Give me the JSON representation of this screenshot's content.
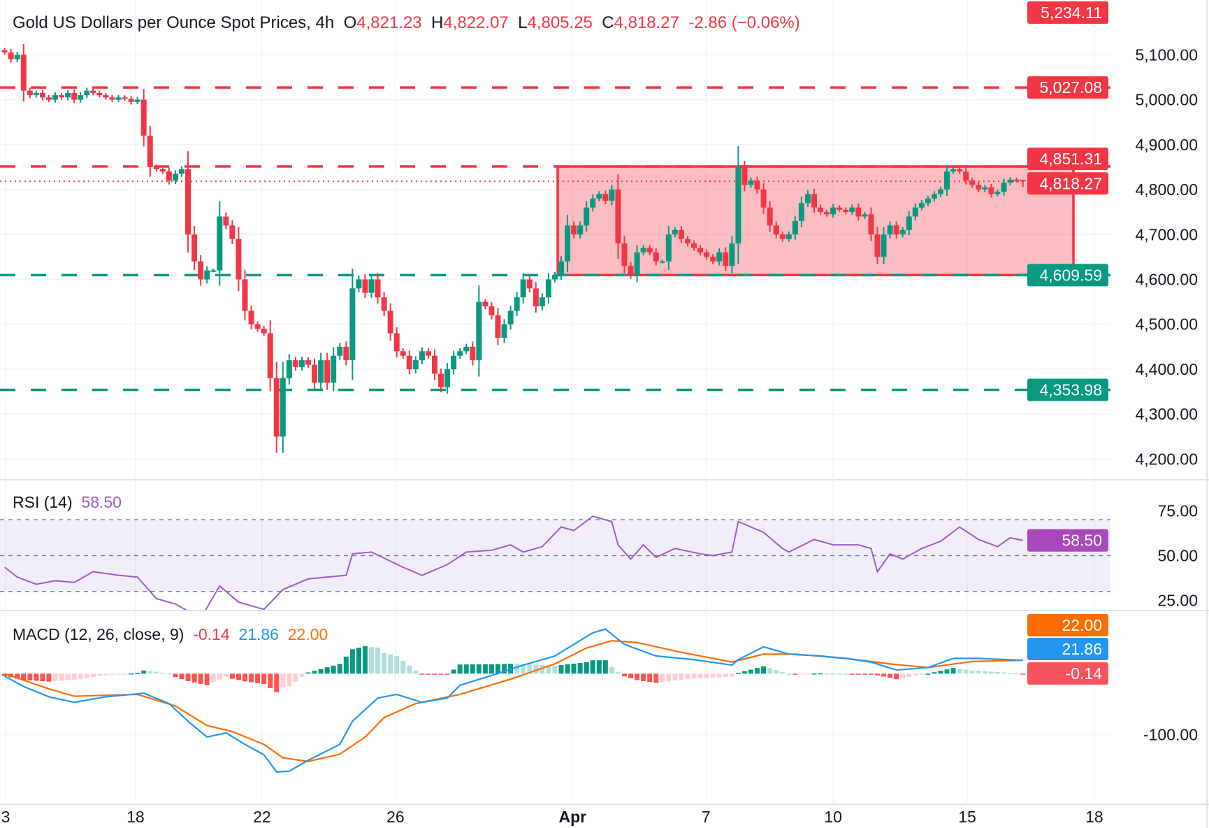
{
  "header": {
    "symbol": "Gold US Dollars per Ounce Spot Prices, 4h",
    "open_label": "O",
    "open": "4,821.23",
    "high_label": "H",
    "high": "4,822.07",
    "low_label": "L",
    "low": "4,805.25",
    "close_label": "C",
    "close": "4,818.27",
    "change": "-2.86 (−0.06%)"
  },
  "rsi": {
    "title": "RSI (14)",
    "value": "58.50"
  },
  "macd": {
    "title": "MACD (12, 26, close, 9)",
    "hist": "-0.14",
    "macd": "21.86",
    "signal": "22.00"
  },
  "colors": {
    "up": "#089981",
    "down": "#f23645",
    "rsi": "#9c5ac9",
    "macd": "#2196f3",
    "signal": "#ff6d00"
  },
  "chart_data": [
    {
      "type": "candlestick",
      "title": "Gold US Dollars per Ounce Spot Prices, 4h",
      "x_tick_labels": [
        "3",
        "18",
        "22",
        "26",
        "Apr",
        "7",
        "10",
        "15",
        "18"
      ],
      "y_tick_labels": [
        "5,100.00",
        "5,000.00",
        "4,900.00",
        "4,800.00",
        "4,700.00",
        "4,600.00",
        "4,500.00",
        "4,400.00",
        "4,300.00",
        "4,200.00"
      ],
      "ylim": [
        4180,
        5230
      ],
      "grid": true,
      "closes": [
        5105,
        5090,
        5100,
        5020,
        5010,
        5015,
        5005,
        5000,
        5010,
        5005,
        5015,
        5000,
        5010,
        5020,
        5015,
        5010,
        5005,
        5000,
        5005,
        5002,
        4995,
        5000,
        4920,
        4850,
        4845,
        4840,
        4820,
        4835,
        4845,
        4700,
        4640,
        4600,
        4620,
        4620,
        4740,
        4720,
        4690,
        4600,
        4530,
        4500,
        4490,
        4480,
        4380,
        4250,
        4380,
        4420,
        4405,
        4420,
        4410,
        4370,
        4420,
        4370,
        4430,
        4450,
        4420,
        4580,
        4600,
        4570,
        4600,
        4560,
        4530,
        4480,
        4440,
        4430,
        4400,
        4420,
        4440,
        4430,
        4390,
        4360,
        4400,
        4430,
        4440,
        4450,
        4420,
        4550,
        4540,
        4520,
        4470,
        4500,
        4530,
        4560,
        4600,
        4580,
        4540,
        4560,
        4600,
        4610,
        4640,
        4720,
        4700,
        4720,
        4760,
        4780,
        4790,
        4775,
        4800,
        4680,
        4630,
        4610,
        4660,
        4670,
        4660,
        4640,
        4640,
        4700,
        4710,
        4690,
        4680,
        4670,
        4660,
        4650,
        4640,
        4660,
        4630,
        4680,
        4850,
        4810,
        4820,
        4800,
        4760,
        4720,
        4700,
        4690,
        4700,
        4730,
        4770,
        4790,
        4760,
        4750,
        4745,
        4760,
        4755,
        4750,
        4760,
        4740,
        4745,
        4700,
        4650,
        4700,
        4720,
        4700,
        4710,
        4740,
        4760,
        4770,
        4780,
        4790,
        4800,
        4840,
        4845,
        4840,
        4820,
        4810,
        4800,
        4805,
        4790,
        4795,
        4815,
        4822,
        4820,
        4818.27
      ],
      "last": {
        "open": 4821.23,
        "high": 4822.07,
        "low": 4805.25,
        "close": 4818.27
      },
      "levels": [
        {
          "value": 5027.08,
          "label": "5,027.08",
          "style": "dashed",
          "color": "#f23645"
        },
        {
          "value": 4851.31,
          "label": "4,851.31",
          "style": "dashed",
          "color": "#f23645"
        },
        {
          "value": 4609.59,
          "label": "4,609.59",
          "style": "dashed",
          "color": "#089981"
        },
        {
          "value": 4353.98,
          "label": "4,353.98",
          "style": "dashed",
          "color": "#089981"
        }
      ],
      "current_price": {
        "value": 4818.27,
        "label": "4,818.27"
      },
      "high_marker": {
        "value": 5234.11,
        "label": "5,234.11"
      },
      "range_box": {
        "top": 4851.31,
        "bottom": 4609.59,
        "color": "#f23645"
      }
    },
    {
      "type": "line",
      "title": "RSI (14)",
      "y_tick_labels": [
        "75.00",
        "50.00",
        "25.00"
      ],
      "bands": [
        70,
        50,
        30
      ],
      "points_index": [
        0,
        2,
        5,
        8,
        11,
        14,
        18,
        21,
        24,
        27,
        31,
        34,
        37,
        41,
        44,
        48,
        54,
        55,
        58,
        63,
        66,
        70,
        73,
        77,
        80,
        82,
        85,
        88,
        90,
        93,
        96,
        97,
        99,
        101,
        103,
        106,
        110,
        112,
        115,
        116,
        120,
        123,
        124,
        128,
        131,
        135,
        137,
        138,
        140,
        142,
        145,
        148,
        151,
        154,
        157,
        159,
        161
      ],
      "values": [
        43.5,
        38,
        34,
        36,
        35,
        41,
        39,
        38,
        26,
        23,
        15,
        33,
        24,
        20,
        31,
        37,
        39,
        51,
        52,
        43.5,
        39,
        45,
        52,
        53,
        56,
        52,
        55,
        66,
        64,
        72,
        69,
        56,
        48,
        56,
        49,
        54,
        51,
        50,
        52,
        69,
        63,
        54,
        52,
        59,
        56,
        56,
        54,
        41,
        51,
        48,
        54,
        58,
        66,
        59,
        55,
        60,
        58.5
      ],
      "last": "58.50"
    },
    {
      "type": "line",
      "title": "MACD (12, 26, close, 9)",
      "y_tick_labels": [
        "-100.00"
      ],
      "series": [
        {
          "name": "MACD",
          "points_index": [
            0,
            3,
            7,
            11,
            16,
            22,
            26,
            29,
            32,
            35,
            38,
            41,
            43,
            45,
            48,
            53,
            55,
            59,
            62,
            66,
            70,
            72,
            77,
            82,
            87,
            90,
            93,
            95,
            98,
            103,
            109,
            115,
            116,
            120,
            124,
            129,
            133,
            137,
            141,
            146,
            150,
            154,
            161
          ],
          "values": [
            -4,
            -21,
            -38,
            -47,
            -38,
            -32,
            -49,
            -78,
            -104,
            -97,
            -116,
            -133,
            -161,
            -160,
            -142,
            -116,
            -78,
            -40,
            -34,
            -47,
            -40,
            -19,
            -3,
            14,
            29,
            48,
            67,
            73,
            48,
            29,
            23,
            14,
            23,
            44,
            32,
            29,
            25,
            19,
            6,
            10,
            25,
            25,
            21.86
          ]
        },
        {
          "name": "Signal",
          "points_index": [
            0,
            7,
            11,
            21,
            27,
            32,
            36,
            41,
            44,
            48,
            53,
            57,
            60,
            65,
            72,
            80,
            87,
            92,
            96,
            100,
            107,
            115,
            120,
            125,
            133,
            140,
            146,
            153,
            161
          ],
          "values": [
            0,
            -25,
            -37,
            -34,
            -53,
            -85,
            -95,
            -116,
            -138,
            -144,
            -132,
            -104,
            -72,
            -49,
            -34,
            -9,
            16,
            42,
            54,
            51,
            35,
            19,
            32,
            32,
            25,
            16,
            10,
            20,
            22
          ]
        }
      ],
      "histogram_last": -0.14
    }
  ]
}
